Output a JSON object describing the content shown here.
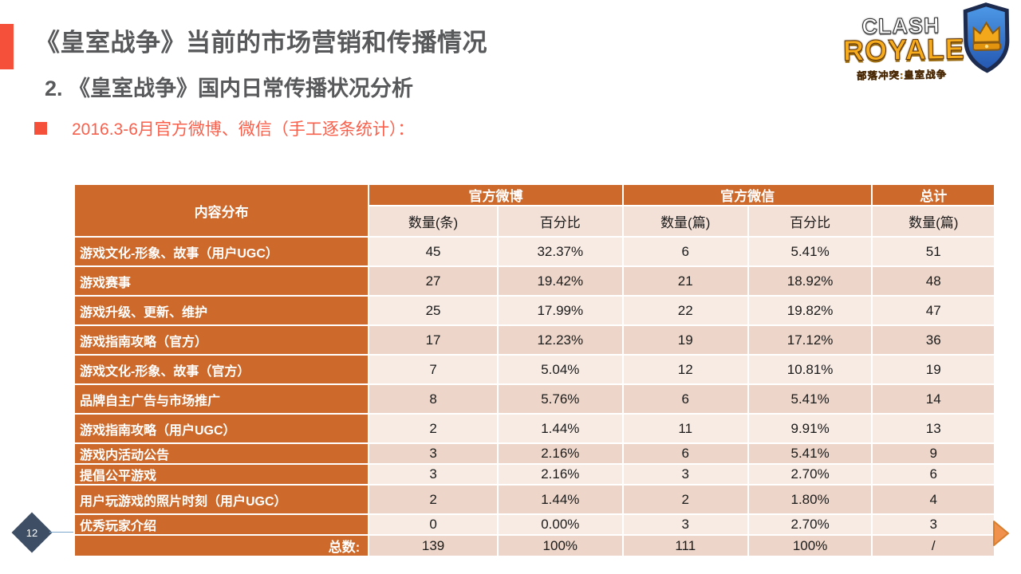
{
  "slide": {
    "title": "《皇室战争》当前的市场营销和传播情况",
    "subtitle": "2. 《皇室战争》国内日常传播状况分析",
    "bullet": "2016.3-6月官方微博、微信（手工逐条统计）：",
    "page_number": "12"
  },
  "logo": {
    "line1": "CLASH",
    "line2": "ROYALE",
    "subtitle": "部落冲突:皇室战争"
  },
  "colors": {
    "accent_red": "#F4503A",
    "table_orange": "#CD6A2B",
    "row_light": "#F8EBE4",
    "row_dark": "#EDD6C9",
    "subheader_bg": "#F3E0D7",
    "title_gray": "#58595B",
    "diamond_navy": "#3E4E64",
    "arrow_orange": "#F0914E"
  },
  "table": {
    "header": {
      "content": "内容分布",
      "weibo": "官方微博",
      "wechat": "官方微信",
      "total": "总计"
    },
    "sub_headers": [
      "数量(条)",
      "百分比",
      "数量(篇)",
      "百分比",
      "数量(篇)"
    ],
    "rows": [
      {
        "label": "游戏文化-形象、故事（用户UGC）",
        "values": [
          "45",
          "32.37%",
          "6",
          "5.41%",
          "51"
        ]
      },
      {
        "label": "游戏赛事",
        "values": [
          "27",
          "19.42%",
          "21",
          "18.92%",
          "48"
        ]
      },
      {
        "label": "游戏升级、更新、维护",
        "values": [
          "25",
          "17.99%",
          "22",
          "19.82%",
          "47"
        ]
      },
      {
        "label": "游戏指南攻略（官方）",
        "values": [
          "17",
          "12.23%",
          "19",
          "17.12%",
          "36"
        ]
      },
      {
        "label": "游戏文化-形象、故事（官方）",
        "values": [
          "7",
          "5.04%",
          "12",
          "10.81%",
          "19"
        ]
      },
      {
        "label": "品牌自主广告与市场推广",
        "values": [
          "8",
          "5.76%",
          "6",
          "5.41%",
          "14"
        ]
      },
      {
        "label": "游戏指南攻略（用户UGC）",
        "values": [
          "2",
          "1.44%",
          "11",
          "9.91%",
          "13"
        ]
      },
      {
        "label": "游戏内活动公告",
        "values": [
          "3",
          "2.16%",
          "6",
          "5.41%",
          "9"
        ]
      },
      {
        "label": "提倡公平游戏",
        "values": [
          "3",
          "2.16%",
          "3",
          "2.70%",
          "6"
        ]
      },
      {
        "label": "用户玩游戏的照片时刻（用户UGC）",
        "values": [
          "2",
          "1.44%",
          "2",
          "1.80%",
          "4"
        ]
      },
      {
        "label": "优秀玩家介绍",
        "values": [
          "0",
          "0.00%",
          "3",
          "2.70%",
          "3"
        ]
      }
    ],
    "total_row": {
      "label": "总数:",
      "values": [
        "139",
        "100%",
        "111",
        "100%",
        "/"
      ]
    }
  }
}
